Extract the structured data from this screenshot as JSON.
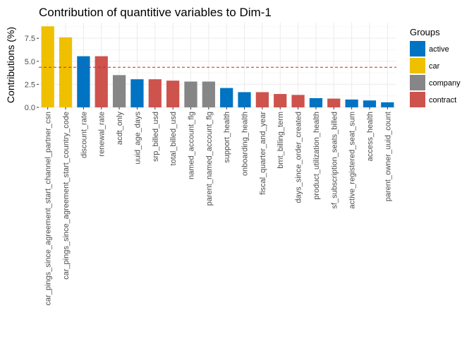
{
  "chart_data": {
    "type": "bar",
    "title": "Contribution of quantitive variables to Dim-1",
    "xlabel": "",
    "ylabel": "Contributions (%)",
    "ylim": [
      0,
      9.2
    ],
    "yticks": [
      0.0,
      2.5,
      5.0,
      7.5
    ],
    "ytick_labels": [
      "0.0",
      "2.5",
      "5.0",
      "7.5"
    ],
    "reference_line": {
      "value": 4.35,
      "color": "#e41a1c",
      "style": "dashed"
    },
    "grid": true,
    "legend_position": "right",
    "legend_title": "Groups",
    "groups": [
      {
        "name": "active",
        "color": "#0073c2"
      },
      {
        "name": "car",
        "color": "#efc000"
      },
      {
        "name": "company",
        "color": "#868686"
      },
      {
        "name": "contract",
        "color": "#cd534c"
      }
    ],
    "categories": [
      "car_pings_since_agreement_start_channel_partner_csn",
      "car_pings_since_agreement_start_country_code",
      "discount_rate",
      "renewal_rate",
      "acdt_only",
      "uuid_age_days",
      "srp_billed_usd",
      "total_billed_usd",
      "named_account_flg",
      "parent_named_account_flg",
      "support_health",
      "onboarding_health",
      "fiscal_quarter_and_year",
      "bmt_billing_term",
      "days_since_order_created",
      "product_utilization_health",
      "sf_subscription_seats_billed",
      "active_registered_seat_sum",
      "access_health",
      "parent_owner_uuid_count"
    ],
    "values": [
      8.8,
      7.6,
      5.55,
      5.55,
      3.5,
      3.05,
      3.05,
      2.9,
      2.8,
      2.8,
      2.1,
      1.65,
      1.65,
      1.45,
      1.35,
      1.0,
      0.95,
      0.85,
      0.75,
      0.55
    ],
    "bar_groups": [
      "car",
      "car",
      "active",
      "contract",
      "company",
      "active",
      "contract",
      "contract",
      "company",
      "company",
      "active",
      "active",
      "contract",
      "contract",
      "contract",
      "active",
      "contract",
      "active",
      "active",
      "active"
    ]
  }
}
